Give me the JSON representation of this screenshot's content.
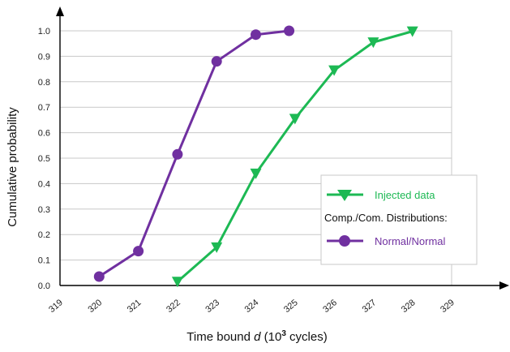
{
  "chart_data": {
    "type": "line",
    "xlabel_prefix": "Time bound ",
    "xlabel_var": "d",
    "xlabel_mid": " (10",
    "xlabel_exp": "3",
    "xlabel_suffix": " cycles)",
    "ylabel": "Cumulative probability",
    "xlim": [
      319,
      329
    ],
    "ylim": [
      0,
      1.0
    ],
    "xticks": [
      319,
      320,
      321,
      322,
      323,
      324,
      325,
      326,
      327,
      328,
      329
    ],
    "yticks": [
      "0.0",
      "0.1",
      "0.2",
      "0.3",
      "0.4",
      "0.5",
      "0.6",
      "0.7",
      "0.8",
      "0.9",
      "1.0"
    ],
    "grid": "horizontal",
    "legend_placement": "lower-right",
    "legend": {
      "injected_label": "Injected data",
      "heading": "Comp./Com. Distributions:",
      "normal_label": "Normal/Normal"
    },
    "series": [
      {
        "name": "Injected data",
        "color": "#1db954",
        "marker": "triangle-down",
        "x": [
          322,
          323,
          324,
          325,
          326,
          327,
          328
        ],
        "y": [
          0.015,
          0.15,
          0.44,
          0.655,
          0.845,
          0.955,
          0.998
        ]
      },
      {
        "name": "Normal/Normal",
        "color": "#7030a0",
        "marker": "circle",
        "x": [
          320,
          321,
          322,
          323,
          324,
          324.85
        ],
        "y": [
          0.035,
          0.135,
          0.515,
          0.88,
          0.985,
          1.0
        ]
      }
    ]
  }
}
